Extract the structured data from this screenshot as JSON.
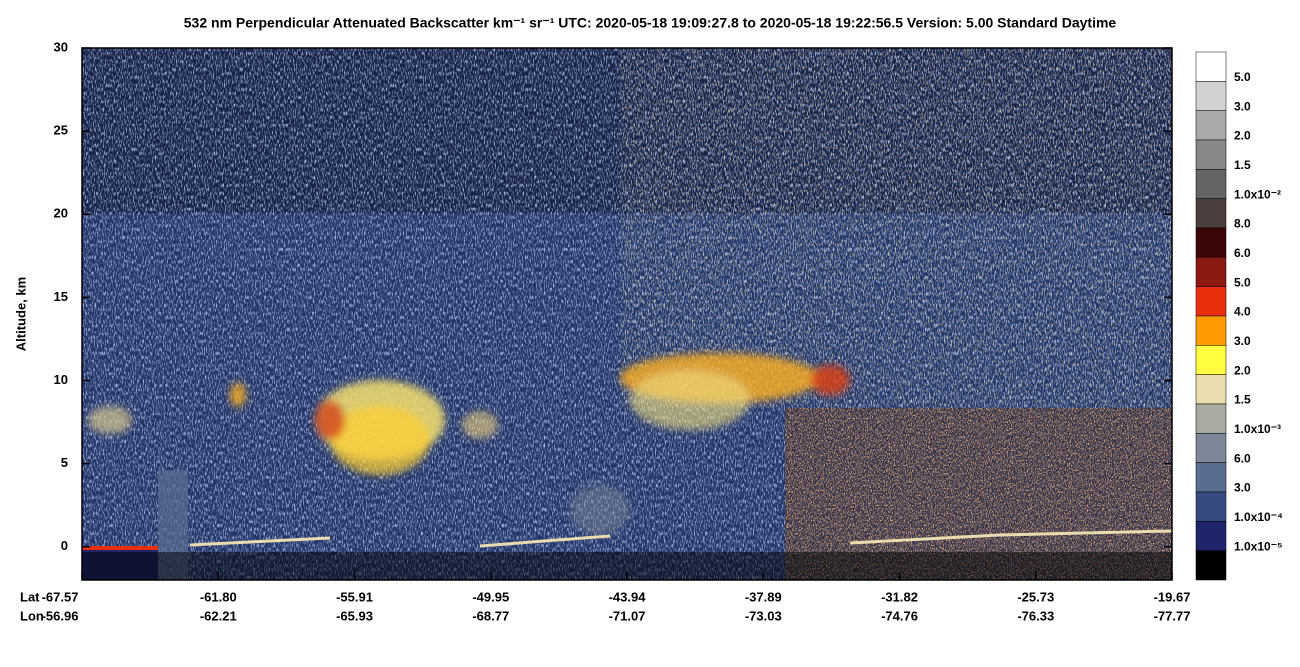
{
  "chart_data": {
    "type": "lidar-curtain",
    "title": "532 nm Perpendicular Attenuated Backscatter km⁻¹ sr⁻¹  UTC: 2020-05-18 19:09:27.8 to 2020-05-18 19:22:56.5  Version: 5.00 Standard Daytime",
    "ylabel": "Altitude, km",
    "ylim": [
      -2,
      30
    ],
    "yticks": [
      0,
      5,
      10,
      15,
      20,
      25,
      30
    ],
    "x_rows": [
      {
        "label": "Lat",
        "values": [
          "-67.57",
          "-61.80",
          "-55.91",
          "-49.95",
          "-43.94",
          "-37.89",
          "-31.82",
          "-25.73",
          "-19.67"
        ]
      },
      {
        "label": "Lon",
        "values": [
          "-56.96",
          "-62.21",
          "-65.93",
          "-68.77",
          "-71.07",
          "-73.03",
          "-74.76",
          "-76.33",
          "-77.77"
        ]
      }
    ],
    "colorbar": {
      "colors": [
        "#ffffff",
        "#d2d2d2",
        "#aaaaaa",
        "#888888",
        "#646464",
        "#4a3f3c",
        "#3a0606",
        "#8c1a12",
        "#e8300e",
        "#ff9a00",
        "#ffff40",
        "#eadcae",
        "#a8aca0",
        "#7c8898",
        "#5a6c90",
        "#364a80",
        "#20246a",
        "#000000"
      ],
      "labels": [
        "5.0",
        "3.0",
        "2.0",
        "1.5",
        "1.0x10⁻²",
        "8.0",
        "6.0",
        "5.0",
        "4.0",
        "3.0",
        "2.0",
        "1.5",
        "1.0x10⁻³",
        "6.0",
        "3.0",
        "1.0x10⁻⁴",
        "1.0x10⁻⁵"
      ]
    }
  }
}
